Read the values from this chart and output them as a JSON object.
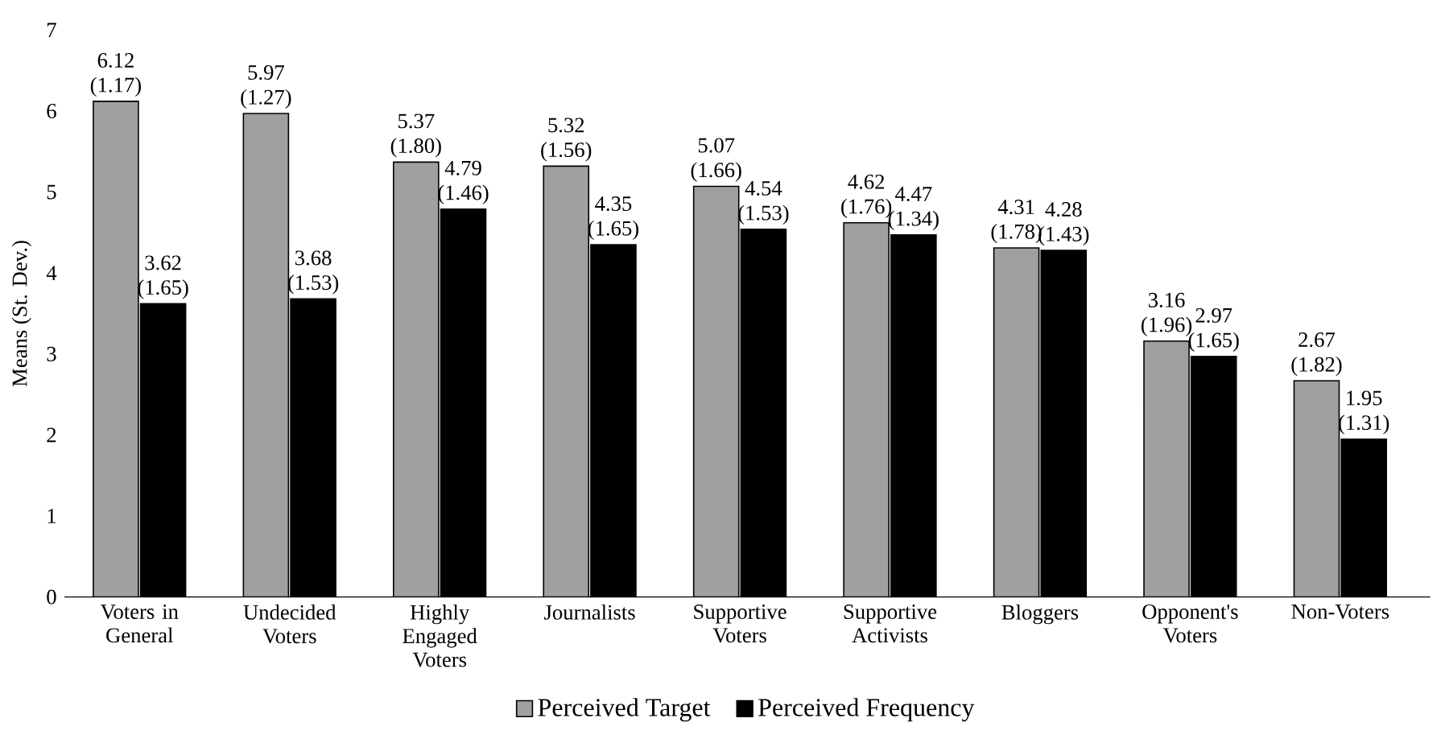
{
  "chart_data": {
    "type": "bar",
    "ylabel": "Means (St. Dev.)",
    "categories": [
      "Voters in General",
      "Undecided Voters",
      "Highly Engaged Voters",
      "Journalists",
      "Supportive Voters",
      "Supportive Activists",
      "Bloggers",
      "Opponent's Voters",
      "Non-Voters"
    ],
    "series": [
      {
        "name": "Perceived Target",
        "color": "#a0a0a0",
        "values": [
          6.12,
          5.97,
          5.37,
          5.32,
          5.07,
          4.62,
          4.31,
          3.16,
          2.67
        ],
        "value_labels": [
          "6.12 (1.17)",
          "5.97 (1.27)",
          "5.37 (1.80)",
          "5.32 (1.56)",
          "5.07 (1.66)",
          "4.62 (1.76)",
          "4.31 (1.78)",
          "3.16 (1.96)",
          "2.67 (1.82)"
        ]
      },
      {
        "name": "Perceived Frequency",
        "color": "#000000",
        "values": [
          3.62,
          3.68,
          4.79,
          4.35,
          4.54,
          4.47,
          4.28,
          2.97,
          1.95
        ],
        "value_labels": [
          "3.62 (1.65)",
          "3.68 (1.53)",
          "4.79 (1.46)",
          "4.35 (1.65)",
          "4.54 (1.53)",
          "4.47 (1.34)",
          "4.28 (1.43)",
          "2.97 (1.65)",
          "1.95 (1.31)"
        ]
      }
    ],
    "ylim": [
      0,
      7
    ],
    "yticks": [
      0,
      1,
      2,
      3,
      4,
      5,
      6,
      7
    ],
    "grid": false,
    "legend": "bottom"
  }
}
